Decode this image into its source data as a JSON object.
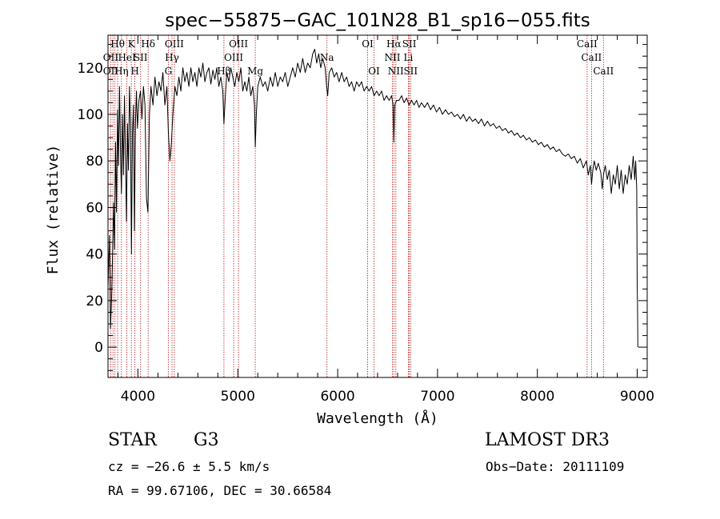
{
  "chart_data": {
    "type": "line",
    "title": "spec−55875−GAC_101N28_B1_sp16−055.fits",
    "xlabel": "Wavelength (Å)",
    "ylabel": "Flux (relative)",
    "xlim": [
      3700,
      9100
    ],
    "ylim": [
      -13,
      134
    ],
    "xticks": [
      4000,
      5000,
      6000,
      7000,
      8000,
      9000
    ],
    "yticks": [
      0,
      20,
      40,
      60,
      80,
      100,
      120
    ],
    "x_minor_step": 200,
    "y_minor_step": 5,
    "series": [
      {
        "name": "flux",
        "color": "#000000",
        "points": [
          [
            3700,
            25
          ],
          [
            3715,
            48
          ],
          [
            3725,
            8
          ],
          [
            3735,
            20
          ],
          [
            3745,
            38
          ],
          [
            3755,
            62
          ],
          [
            3765,
            42
          ],
          [
            3775,
            88
          ],
          [
            3785,
            58
          ],
          [
            3795,
            102
          ],
          [
            3805,
            78
          ],
          [
            3815,
            112
          ],
          [
            3825,
            84
          ],
          [
            3835,
            66
          ],
          [
            3845,
            100
          ],
          [
            3855,
            74
          ],
          [
            3865,
            108
          ],
          [
            3875,
            82
          ],
          [
            3885,
            54
          ],
          [
            3895,
            96
          ],
          [
            3905,
            76
          ],
          [
            3915,
            112
          ],
          [
            3925,
            96
          ],
          [
            3935,
            40
          ],
          [
            3945,
            92
          ],
          [
            3955,
            104
          ],
          [
            3965,
            50
          ],
          [
            3975,
            96
          ],
          [
            3985,
            110
          ],
          [
            3995,
            94
          ],
          [
            4010,
            106
          ],
          [
            4025,
            110
          ],
          [
            4040,
            98
          ],
          [
            4055,
            112
          ],
          [
            4070,
            104
          ],
          [
            4085,
            64
          ],
          [
            4100,
            58
          ],
          [
            4115,
            100
          ],
          [
            4130,
            112
          ],
          [
            4150,
            104
          ],
          [
            4170,
            116
          ],
          [
            4190,
            108
          ],
          [
            4210,
            114
          ],
          [
            4230,
            110
          ],
          [
            4250,
            118
          ],
          [
            4270,
            104
          ],
          [
            4290,
            112
          ],
          [
            4305,
            92
          ],
          [
            4320,
            80
          ],
          [
            4335,
            88
          ],
          [
            4350,
            100
          ],
          [
            4370,
            112
          ],
          [
            4390,
            108
          ],
          [
            4410,
            116
          ],
          [
            4430,
            110
          ],
          [
            4450,
            120
          ],
          [
            4470,
            114
          ],
          [
            4490,
            118
          ],
          [
            4510,
            112
          ],
          [
            4530,
            120
          ],
          [
            4550,
            114
          ],
          [
            4570,
            118
          ],
          [
            4590,
            112
          ],
          [
            4610,
            120
          ],
          [
            4630,
            116
          ],
          [
            4650,
            122
          ],
          [
            4670,
            114
          ],
          [
            4690,
            118
          ],
          [
            4710,
            120
          ],
          [
            4730,
            113
          ],
          [
            4750,
            119
          ],
          [
            4770,
            115
          ],
          [
            4790,
            120
          ],
          [
            4810,
            112
          ],
          [
            4830,
            116
          ],
          [
            4850,
            110
          ],
          [
            4861,
            96
          ],
          [
            4875,
            108
          ],
          [
            4890,
            118
          ],
          [
            4910,
            114
          ],
          [
            4930,
            120
          ],
          [
            4950,
            116
          ],
          [
            4970,
            112
          ],
          [
            4990,
            118
          ],
          [
            5010,
            114
          ],
          [
            5030,
            120
          ],
          [
            5050,
            110
          ],
          [
            5070,
            114
          ],
          [
            5090,
            110
          ],
          [
            5110,
            116
          ],
          [
            5130,
            108
          ],
          [
            5150,
            112
          ],
          [
            5167,
            104
          ],
          [
            5175,
            86
          ],
          [
            5185,
            100
          ],
          [
            5200,
            112
          ],
          [
            5225,
            116
          ],
          [
            5250,
            112
          ],
          [
            5275,
            114
          ],
          [
            5300,
            110
          ],
          [
            5325,
            116
          ],
          [
            5350,
            112
          ],
          [
            5375,
            118
          ],
          [
            5400,
            112
          ],
          [
            5425,
            116
          ],
          [
            5450,
            114
          ],
          [
            5475,
            118
          ],
          [
            5500,
            112
          ],
          [
            5525,
            116
          ],
          [
            5550,
            120
          ],
          [
            5575,
            116
          ],
          [
            5600,
            122
          ],
          [
            5625,
            118
          ],
          [
            5650,
            124
          ],
          [
            5675,
            118
          ],
          [
            5700,
            122
          ],
          [
            5725,
            120
          ],
          [
            5750,
            126
          ],
          [
            5770,
            128
          ],
          [
            5790,
            122
          ],
          [
            5810,
            126
          ],
          [
            5830,
            120
          ],
          [
            5850,
            124
          ],
          [
            5875,
            120
          ],
          [
            5890,
            112
          ],
          [
            5900,
            108
          ],
          [
            5915,
            118
          ],
          [
            5940,
            120
          ],
          [
            5965,
            116
          ],
          [
            5990,
            118
          ],
          [
            6015,
            114
          ],
          [
            6040,
            118
          ],
          [
            6065,
            114
          ],
          [
            6090,
            116
          ],
          [
            6115,
            112
          ],
          [
            6140,
            114
          ],
          [
            6165,
            110
          ],
          [
            6190,
            114
          ],
          [
            6215,
            112
          ],
          [
            6240,
            114
          ],
          [
            6265,
            110
          ],
          [
            6290,
            112
          ],
          [
            6315,
            110
          ],
          [
            6340,
            112
          ],
          [
            6365,
            108
          ],
          [
            6390,
            110
          ],
          [
            6415,
            108
          ],
          [
            6440,
            110
          ],
          [
            6465,
            106
          ],
          [
            6490,
            108
          ],
          [
            6515,
            106
          ],
          [
            6540,
            108
          ],
          [
            6555,
            104
          ],
          [
            6563,
            88
          ],
          [
            6572,
            104
          ],
          [
            6590,
            106
          ],
          [
            6615,
            106
          ],
          [
            6640,
            108
          ],
          [
            6665,
            105
          ],
          [
            6690,
            107
          ],
          [
            6715,
            104
          ],
          [
            6740,
            106
          ],
          [
            6765,
            104
          ],
          [
            6790,
            106
          ],
          [
            6815,
            103
          ],
          [
            6840,
            105
          ],
          [
            6870,
            103
          ],
          [
            6900,
            105
          ],
          [
            6930,
            102
          ],
          [
            6960,
            104
          ],
          [
            6990,
            101
          ],
          [
            7020,
            103
          ],
          [
            7050,
            100
          ],
          [
            7080,
            102
          ],
          [
            7110,
            100
          ],
          [
            7140,
            101
          ],
          [
            7170,
            99
          ],
          [
            7200,
            100
          ],
          [
            7230,
            98
          ],
          [
            7260,
            100
          ],
          [
            7290,
            97
          ],
          [
            7320,
            99
          ],
          [
            7350,
            97
          ],
          [
            7380,
            98
          ],
          [
            7410,
            96
          ],
          [
            7440,
            98
          ],
          [
            7470,
            95
          ],
          [
            7500,
            97
          ],
          [
            7530,
            95
          ],
          [
            7560,
            96
          ],
          [
            7590,
            94
          ],
          [
            7620,
            95
          ],
          [
            7650,
            93
          ],
          [
            7680,
            94
          ],
          [
            7710,
            92
          ],
          [
            7740,
            93
          ],
          [
            7770,
            91
          ],
          [
            7800,
            92
          ],
          [
            7830,
            90
          ],
          [
            7860,
            91
          ],
          [
            7890,
            89
          ],
          [
            7920,
            90
          ],
          [
            7950,
            88
          ],
          [
            7980,
            89
          ],
          [
            8010,
            87
          ],
          [
            8040,
            88
          ],
          [
            8070,
            86
          ],
          [
            8100,
            87
          ],
          [
            8130,
            85
          ],
          [
            8160,
            86
          ],
          [
            8190,
            84
          ],
          [
            8220,
            85
          ],
          [
            8250,
            83
          ],
          [
            8280,
            82
          ],
          [
            8310,
            83
          ],
          [
            8340,
            81
          ],
          [
            8370,
            82
          ],
          [
            8400,
            79
          ],
          [
            8430,
            81
          ],
          [
            8460,
            77
          ],
          [
            8490,
            80
          ],
          [
            8510,
            74
          ],
          [
            8530,
            78
          ],
          [
            8542,
            70
          ],
          [
            8555,
            76
          ],
          [
            8570,
            80
          ],
          [
            8590,
            76
          ],
          [
            8610,
            79
          ],
          [
            8635,
            75
          ],
          [
            8650,
            68
          ],
          [
            8662,
            74
          ],
          [
            8680,
            78
          ],
          [
            8700,
            72
          ],
          [
            8720,
            76
          ],
          [
            8740,
            66
          ],
          [
            8760,
            74
          ],
          [
            8780,
            70
          ],
          [
            8800,
            78
          ],
          [
            8820,
            68
          ],
          [
            8840,
            76
          ],
          [
            8860,
            66
          ],
          [
            8880,
            74
          ],
          [
            8900,
            70
          ],
          [
            8920,
            78
          ],
          [
            8940,
            72
          ],
          [
            8960,
            82
          ],
          [
            8975,
            72
          ],
          [
            8985,
            80
          ],
          [
            8995,
            68
          ],
          [
            9000,
            26
          ],
          [
            9003,
            18
          ],
          [
            9005,
            10
          ],
          [
            9006,
            0
          ]
        ]
      }
    ],
    "line_markers": {
      "color": "#c03030",
      "wavelengths": [
        3727,
        3750,
        3770,
        3797,
        3835,
        3889,
        3934,
        3969,
        4026,
        4102,
        4304,
        4341,
        4364,
        4861,
        4959,
        5007,
        5175,
        5893,
        6300,
        6364,
        6548,
        6563,
        6583,
        6708,
        6717,
        6731,
        8498,
        8542,
        8662
      ]
    },
    "line_labels": [
      {
        "text": "Hθ",
        "wavelength": 3797,
        "row": 1
      },
      {
        "text": "K",
        "wavelength": 3934,
        "row": 1
      },
      {
        "text": "Hδ",
        "wavelength": 4102,
        "row": 1
      },
      {
        "text": "OIII",
        "wavelength": 4364,
        "row": 1
      },
      {
        "text": "OIII",
        "wavelength": 5007,
        "row": 1
      },
      {
        "text": "OI",
        "wavelength": 6300,
        "row": 1
      },
      {
        "text": "Hα",
        "wavelength": 6563,
        "row": 1
      },
      {
        "text": "SII",
        "wavelength": 6717,
        "row": 1
      },
      {
        "text": "CaII",
        "wavelength": 8498,
        "row": 1
      },
      {
        "text": "OII",
        "wavelength": 3727,
        "row": 2
      },
      {
        "text": "HeI",
        "wavelength": 3889,
        "row": 2
      },
      {
        "text": "SII",
        "wavelength": 4026,
        "row": 2
      },
      {
        "text": "Hγ",
        "wavelength": 4341,
        "row": 2
      },
      {
        "text": "OIII",
        "wavelength": 4959,
        "row": 2
      },
      {
        "text": "Na",
        "wavelength": 5893,
        "row": 2
      },
      {
        "text": "NII",
        "wavelength": 6548,
        "row": 2
      },
      {
        "text": "Li",
        "wavelength": 6708,
        "row": 2
      },
      {
        "text": "CaII",
        "wavelength": 8542,
        "row": 2
      },
      {
        "text": "OII",
        "wavelength": 3727,
        "row": 3
      },
      {
        "text": "Hη",
        "wavelength": 3835,
        "row": 3
      },
      {
        "text": "H",
        "wavelength": 3969,
        "row": 3
      },
      {
        "text": "G",
        "wavelength": 4304,
        "row": 3
      },
      {
        "text": "Hβ",
        "wavelength": 4861,
        "row": 3
      },
      {
        "text": "Mg",
        "wavelength": 5175,
        "row": 3
      },
      {
        "text": "OI",
        "wavelength": 6364,
        "row": 3
      },
      {
        "text": "NII",
        "wavelength": 6583,
        "row": 3
      },
      {
        "text": "SII",
        "wavelength": 6731,
        "row": 3
      },
      {
        "text": "CaII",
        "wavelength": 8662,
        "row": 3
      }
    ]
  },
  "info": {
    "object_class": "STAR",
    "subclass": "G3",
    "survey": "LAMOST DR3",
    "redshift_text": "cz = −26.6 ± 5.5 km/s",
    "obs_date": "Obs−Date: 20111109",
    "coords": "RA =  99.67106, DEC =  30.66584"
  }
}
